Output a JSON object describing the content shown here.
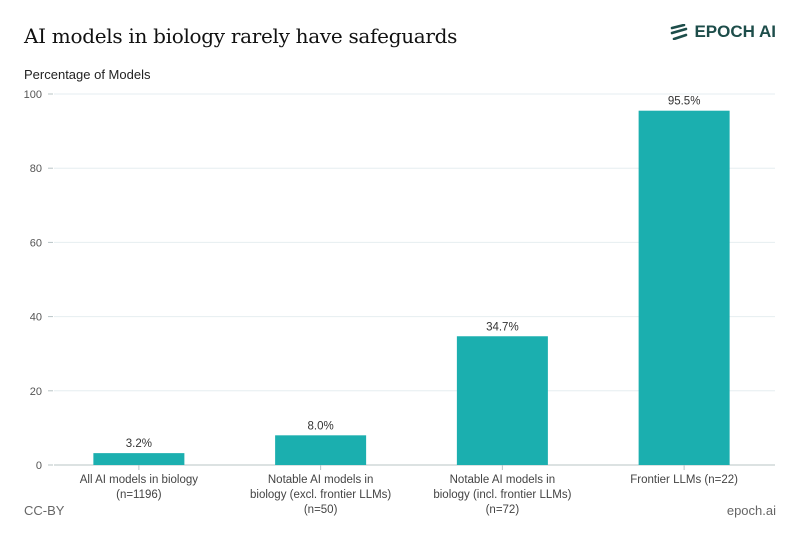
{
  "header": {
    "title": "AI models in biology rarely have safeguards",
    "logo_text": "EPOCH AI"
  },
  "footer": {
    "license": "CC-BY",
    "site": "epoch.ai"
  },
  "colors": {
    "bar": "#1bafaf",
    "grid": "#e6eef0",
    "axis": "#b8c4c6",
    "logo": "#1d4d4a"
  },
  "chart_data": {
    "type": "bar",
    "title": "AI models in biology rarely have safeguards",
    "ylabel": "Percentage of Models",
    "xlabel": "",
    "ylim": [
      0,
      100
    ],
    "yticks": [
      0,
      20,
      40,
      60,
      80,
      100
    ],
    "grid": true,
    "categories": [
      [
        "All AI models in biology",
        "(n=1196)"
      ],
      [
        "Notable AI models in",
        "biology (excl. frontier LLMs)",
        "(n=50)"
      ],
      [
        "Notable AI models in",
        "biology (incl. frontier LLMs)",
        "(n=72)"
      ],
      [
        "Frontier LLMs (n=22)"
      ]
    ],
    "values": [
      3.2,
      8.0,
      34.7,
      95.5
    ],
    "data_labels": [
      "3.2%",
      "8.0%",
      "34.7%",
      "95.5%"
    ]
  }
}
